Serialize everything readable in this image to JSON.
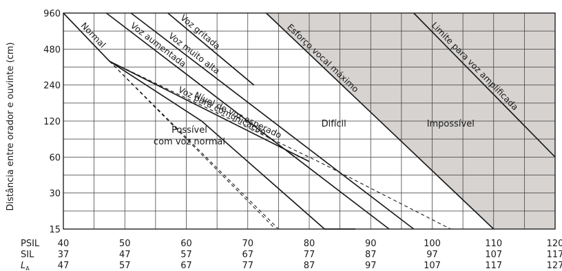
{
  "chart_data": {
    "type": "line",
    "ylabel": "Distância entre orador e ouvinte (cm)",
    "y_scale": "log2",
    "y_ticks": [
      15,
      30,
      60,
      120,
      240,
      480,
      960
    ],
    "ylim": [
      15,
      960
    ],
    "x_rows": [
      {
        "label": "PSIL",
        "values": [
          40,
          50,
          60,
          70,
          80,
          90,
          100,
          110,
          120
        ]
      },
      {
        "label": "SIL",
        "values": [
          37,
          47,
          57,
          67,
          77,
          87,
          97,
          107,
          117
        ]
      },
      {
        "label": "LA",
        "values": [
          47,
          57,
          67,
          77,
          87,
          97,
          107,
          117,
          127
        ]
      }
    ],
    "xlim": [
      40,
      120
    ],
    "grid": true,
    "regions": [
      {
        "label": "Possível com voz normal",
        "label_lines": [
          "Possível",
          "com voz normal"
        ]
      },
      {
        "label": "Difícil"
      },
      {
        "label": "Impossível",
        "shaded": true
      }
    ],
    "series": [
      {
        "name": "Normal",
        "style": "solid",
        "x": [
          40,
          47.5,
          62.5,
          82.5,
          87.5
        ],
        "y": [
          960,
          380,
          120,
          15,
          15
        ]
      },
      {
        "name": "Voz aumentada",
        "style": "solid",
        "x": [
          47,
          93
        ],
        "y": [
          960,
          15
        ]
      },
      {
        "name": "Voz muito alta",
        "style": "solid",
        "x": [
          51,
          97
        ],
        "y": [
          960,
          15
        ]
      },
      {
        "name": "Voz gritada",
        "style": "solid",
        "x": [
          57,
          71
        ],
        "y": [
          960,
          240
        ]
      },
      {
        "name": "Voz para comunicação",
        "style": "solid",
        "x": [
          47.5,
          80
        ],
        "y": [
          380,
          55
        ]
      },
      {
        "name": "Nível de voz esperado",
        "style": "dashed",
        "x": [
          47.5,
          81.5,
          103
        ],
        "y": [
          380,
          55,
          15
        ]
      },
      {
        "name": "",
        "style": "dashed",
        "x": [
          47.5,
          75
        ],
        "y": [
          380,
          15
        ]
      },
      {
        "name": "",
        "style": "dashed",
        "x": [
          47.5,
          74.5
        ],
        "y": [
          380,
          15
        ]
      },
      {
        "name": "Esforço vocal máximo",
        "style": "solid",
        "x": [
          73,
          110
        ],
        "y": [
          960,
          15
        ]
      },
      {
        "name": "Limite para voz amplificada",
        "style": "solid",
        "x": [
          97,
          120
        ],
        "y": [
          960,
          60
        ]
      }
    ]
  }
}
